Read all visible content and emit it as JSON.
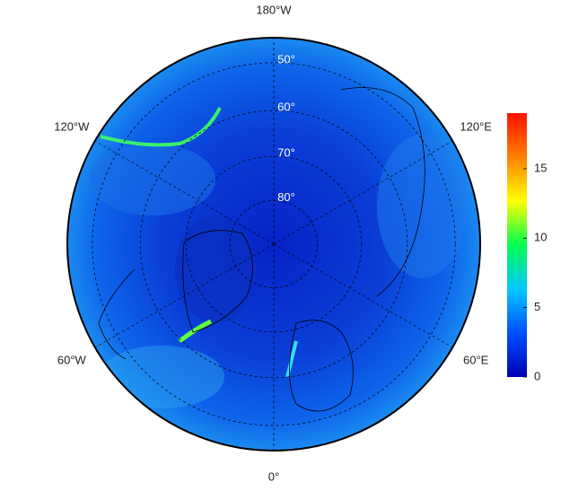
{
  "map": {
    "projection": "north-polar-stereographic",
    "boundary_latitude": 45,
    "latitudes": [
      {
        "value": 50,
        "label": "50°"
      },
      {
        "value": 60,
        "label": "60°"
      },
      {
        "value": 70,
        "label": "70°"
      },
      {
        "value": 80,
        "label": "80°"
      }
    ],
    "longitudes": [
      {
        "value": 180,
        "label": "180°W"
      },
      {
        "value": -120,
        "label": "120°W"
      },
      {
        "value": 120,
        "label": "120°E"
      },
      {
        "value": -60,
        "label": "60°W"
      },
      {
        "value": 60,
        "label": "60°E"
      },
      {
        "value": 0,
        "label": "0°"
      }
    ],
    "colorbar": {
      "lim": [
        0,
        19
      ],
      "ticks": [
        0,
        5,
        10,
        15
      ],
      "colors": [
        "#0000b4",
        "#0050ff",
        "#00c8ff",
        "#00ff50",
        "#ffff00",
        "#ff8000",
        "#ff1000"
      ]
    }
  }
}
